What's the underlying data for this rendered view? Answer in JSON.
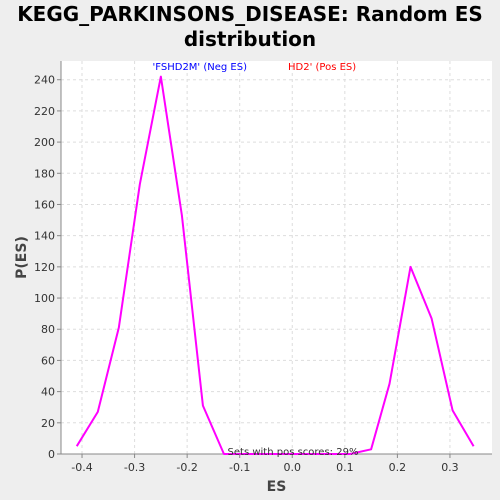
{
  "chart_data": {
    "type": "line",
    "title_line1": "KEGG_PARKINSONS_DISEASE: Random ES",
    "title_line2": "distribution",
    "xlabel": "ES",
    "ylabel": "P(ES)",
    "xlim": [
      -0.44,
      0.38
    ],
    "ylim": [
      0,
      252
    ],
    "x_ticks": [
      "-0.4",
      "-0.3",
      "-0.2",
      "-0.1",
      "0.0",
      "0.1",
      "0.2",
      "0.3"
    ],
    "x_tick_values": [
      -0.4,
      -0.3,
      -0.2,
      -0.1,
      0.0,
      0.1,
      0.2,
      0.3
    ],
    "y_ticks": [
      "0",
      "20",
      "40",
      "60",
      "80",
      "100",
      "120",
      "140",
      "160",
      "180",
      "200",
      "220",
      "240"
    ],
    "y_tick_values": [
      0,
      20,
      40,
      60,
      80,
      100,
      120,
      140,
      160,
      180,
      200,
      220,
      240
    ],
    "legend": {
      "neg_text": "'FSHD2M' (Neg ES)",
      "pos_text": "HD2' (Pos ES)",
      "neg_color": "#0000ff",
      "pos_color": "#ff0000"
    },
    "annotation": "Sets with pos scores: 29%",
    "grid": true,
    "series": [
      {
        "color": "#ff00ff",
        "x": [
          -0.41,
          -0.37,
          -0.33,
          -0.29,
          -0.25,
          -0.21,
          -0.17,
          -0.13,
          -0.09,
          -0.05,
          -0.01,
          0.03,
          0.07,
          0.11,
          0.15,
          0.185,
          0.225,
          0.265,
          0.305,
          0.345
        ],
        "y": [
          5,
          27,
          81,
          173,
          242,
          153,
          31,
          0,
          0,
          0,
          0,
          0,
          0,
          0,
          3,
          45,
          120,
          87,
          28,
          5
        ]
      }
    ]
  }
}
